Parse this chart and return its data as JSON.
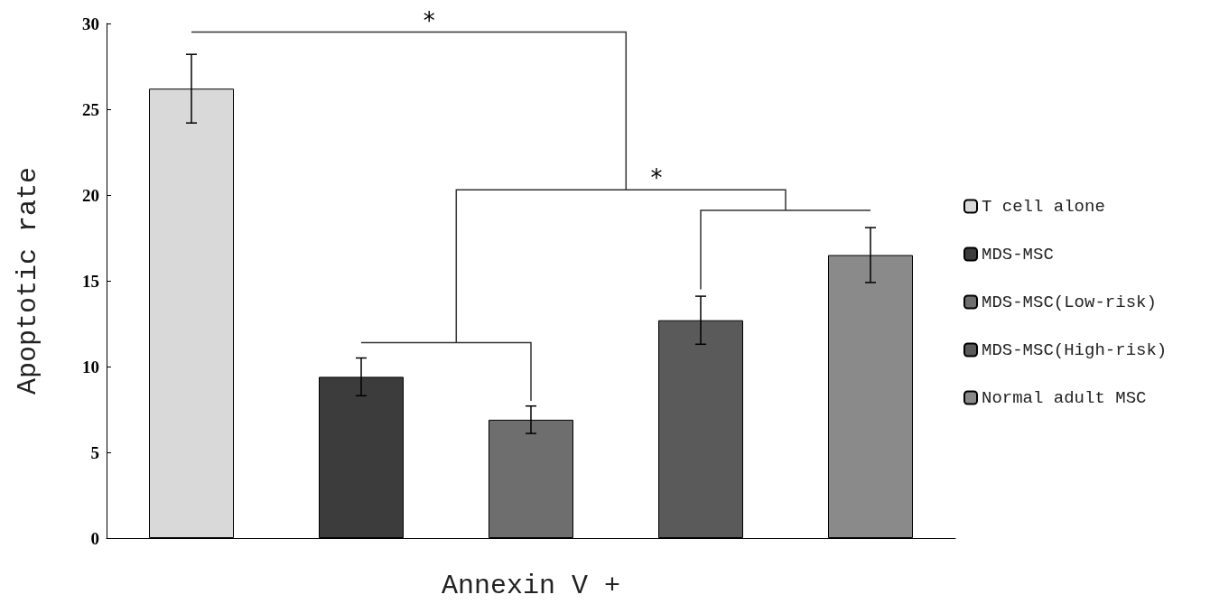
{
  "chart_data": {
    "type": "bar",
    "xlabel": "Annexin V +",
    "ylabel": "Apoptotic rate",
    "categories": [
      null,
      null,
      null,
      null,
      null
    ],
    "series": [
      {
        "name": "T cell alone",
        "color": "#d9d9d9",
        "values": [
          26.2,
          null,
          null,
          null,
          null
        ],
        "errors": [
          2.0,
          null,
          null,
          null,
          null
        ]
      },
      {
        "name": "MDS-MSC",
        "color": "#3c3c3c",
        "values": [
          null,
          9.4,
          null,
          null,
          null
        ],
        "errors": [
          null,
          1.1,
          null,
          null,
          null
        ]
      },
      {
        "name": "MDS-MSC(Low-risk)",
        "color": "#6e6e6e",
        "values": [
          null,
          null,
          6.9,
          null,
          null
        ],
        "errors": [
          null,
          null,
          0.8,
          null,
          null
        ]
      },
      {
        "name": "MDS-MSC(High-risk)",
        "color": "#5a5a5a",
        "values": [
          null,
          null,
          null,
          12.7,
          null
        ],
        "errors": [
          null,
          null,
          null,
          1.4,
          null
        ]
      },
      {
        "name": "Normal adult MSC",
        "color": "#8a8a8a",
        "values": [
          null,
          null,
          null,
          null,
          16.5
        ],
        "errors": [
          null,
          null,
          null,
          null,
          1.6
        ]
      }
    ],
    "ylim": [
      0,
      30
    ],
    "yticks": [
      0,
      5,
      10,
      15,
      20,
      25,
      30
    ],
    "grid": false,
    "legend": "right",
    "annotations": [
      "*",
      "*"
    ]
  }
}
